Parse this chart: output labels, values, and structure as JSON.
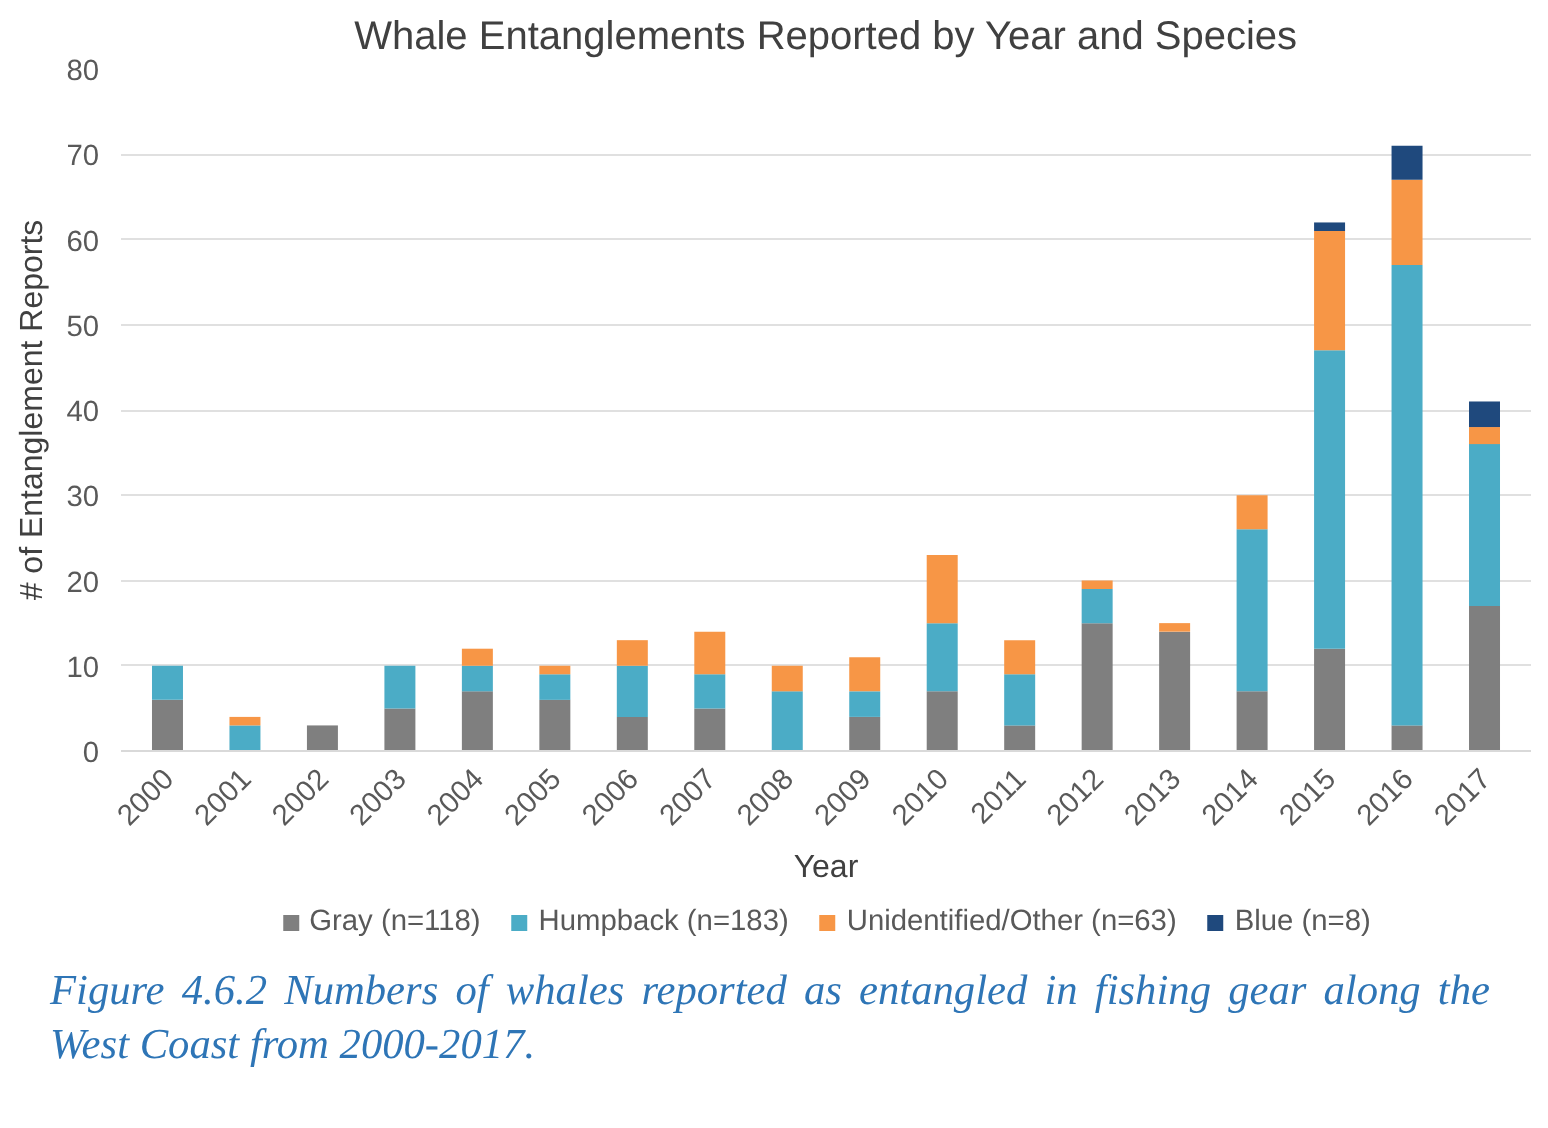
{
  "chart_data": {
    "type": "bar",
    "stacked": true,
    "title": "Whale Entanglements Reported by Year and Species",
    "xlabel": "Year",
    "ylabel": "# of Entanglement Reports",
    "categories": [
      "2000",
      "2001",
      "2002",
      "2003",
      "2004",
      "2005",
      "2006",
      "2007",
      "2008",
      "2009",
      "2010",
      "2011",
      "2012",
      "2013",
      "2014",
      "2015",
      "2016",
      "2017"
    ],
    "series": [
      {
        "name": "Gray (n=118)",
        "color": "#7f7f7f",
        "values": [
          6,
          0,
          3,
          5,
          7,
          6,
          4,
          5,
          0,
          4,
          7,
          3,
          15,
          14,
          7,
          12,
          3,
          17
        ]
      },
      {
        "name": "Humpback (n=183)",
        "color": "#4bacc6",
        "values": [
          4,
          3,
          0,
          5,
          3,
          3,
          6,
          4,
          7,
          3,
          8,
          6,
          4,
          0,
          19,
          35,
          54,
          19
        ]
      },
      {
        "name": "Unidentified/Other (n=63)",
        "color": "#f79646",
        "values": [
          0,
          1,
          0,
          0,
          2,
          1,
          3,
          5,
          3,
          4,
          8,
          4,
          1,
          1,
          4,
          14,
          10,
          2
        ]
      },
      {
        "name": "Blue (n=8)",
        "color": "#1f497d",
        "values": [
          0,
          0,
          0,
          0,
          0,
          0,
          0,
          0,
          0,
          0,
          0,
          0,
          0,
          0,
          0,
          1,
          4,
          3
        ]
      }
    ],
    "ylim": [
      0,
      80
    ],
    "yticks": [
      0,
      10,
      20,
      30,
      40,
      50,
      60,
      70,
      80
    ],
    "grid": "y",
    "legend": "bottom",
    "annotations": [
      "Figure 4.6.2 Numbers of whales reported as entangled in fishing gear along the West Coast from 2000-2017."
    ]
  }
}
